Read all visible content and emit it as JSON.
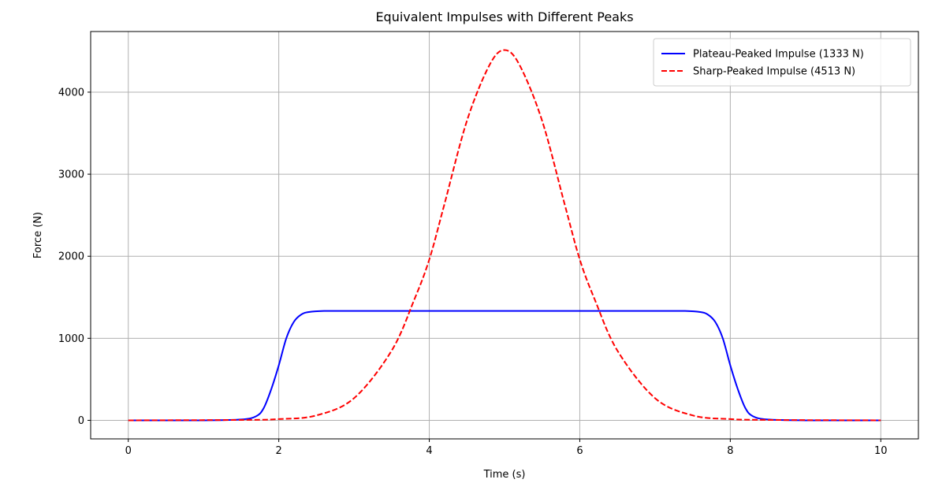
{
  "chart_data": {
    "type": "line",
    "title": "Equivalent Impulses with Different Peaks",
    "xlabel": "Time (s)",
    "ylabel": "Force (N)",
    "xlim": [
      -0.5,
      10.5
    ],
    "ylim": [
      -226,
      4739
    ],
    "xticks": [
      0,
      2,
      4,
      6,
      8,
      10
    ],
    "yticks": [
      0,
      1000,
      2000,
      3000,
      4000
    ],
    "grid": true,
    "legend_position": "top-right",
    "series": [
      {
        "name": "Plateau-Peaked Impulse (1333 N)",
        "color": "#0000ff",
        "line_style": "solid",
        "x": [
          0,
          1.0,
          1.5,
          1.7,
          1.8,
          1.9,
          2.0,
          2.1,
          2.2,
          2.3,
          2.4,
          2.6,
          3.0,
          5.0,
          7.0,
          7.4,
          7.6,
          7.7,
          7.8,
          7.9,
          8.0,
          8.1,
          8.2,
          8.3,
          8.5,
          9.0,
          10.0
        ],
        "y": [
          0,
          0,
          10,
          50,
          150,
          380,
          670,
          1000,
          1200,
          1290,
          1320,
          1333,
          1333,
          1333,
          1333,
          1333,
          1320,
          1290,
          1200,
          1000,
          670,
          380,
          150,
          50,
          10,
          0,
          0
        ]
      },
      {
        "name": "Sharp-Peaked Impulse (4513 N)",
        "color": "#ff0000",
        "line_style": "dashed",
        "x": [
          0,
          1.5,
          2.0,
          2.5,
          3.0,
          3.5,
          3.8,
          4.0,
          4.2,
          4.5,
          4.8,
          5.0,
          5.2,
          5.5,
          5.8,
          6.0,
          6.2,
          6.5,
          7.0,
          7.5,
          8.0,
          8.5,
          10.0
        ],
        "y": [
          0,
          5,
          15,
          60,
          270,
          850,
          1470,
          1960,
          2630,
          3650,
          4330,
          4513,
          4330,
          3650,
          2630,
          1960,
          1470,
          850,
          270,
          60,
          15,
          5,
          0
        ]
      }
    ]
  }
}
